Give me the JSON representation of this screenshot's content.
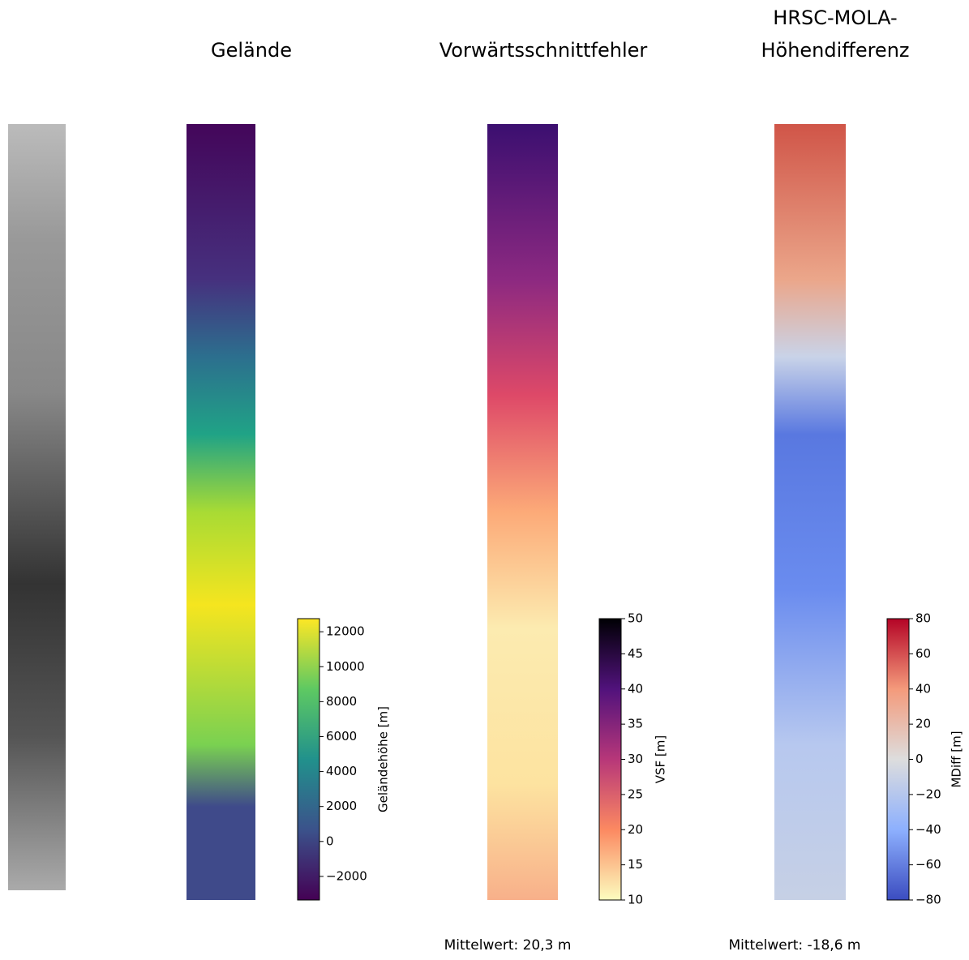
{
  "chart_data": [
    {
      "type": "heatmap",
      "title": [
        "Gelände"
      ],
      "colorbar_label": "Geländehöhe [m]",
      "clim": [
        -3350,
        12750
      ],
      "cticks": [
        {
          "value": -2000,
          "label": "−2000"
        },
        0,
        2000,
        4000,
        6000,
        8000,
        10000,
        12000
      ],
      "colormap": [
        "#440154",
        "#3b528b",
        "#21918c",
        "#5ec962",
        "#fde725"
      ]
    },
    {
      "type": "heatmap",
      "title": [
        "Vorwärtsschnittfehler"
      ],
      "colorbar_label": "VSF [m]",
      "clim": [
        10,
        50
      ],
      "cticks": [
        10,
        15,
        20,
        25,
        30,
        35,
        40,
        45,
        50
      ],
      "colormap": [
        "#fcfdbf",
        "#fc8961",
        "#b73779",
        "#51127c",
        "#000004"
      ],
      "annotation": "Mittelwert: 20,3 m"
    },
    {
      "type": "heatmap",
      "title": [
        "HRSC-MOLA-",
        "Höhendifferenz"
      ],
      "colorbar_label": "MDiff [m]",
      "clim": [
        -80,
        80
      ],
      "cticks": [
        {
          "value": -80,
          "label": "−80"
        },
        {
          "value": -60,
          "label": "−60"
        },
        {
          "value": -40,
          "label": "−40"
        },
        {
          "value": -20,
          "label": "−20"
        },
        0,
        20,
        40,
        60,
        80
      ],
      "colormap": [
        "#3b4cc0",
        "#8db0fe",
        "#dddddd",
        "#f49a7b",
        "#b40426"
      ],
      "annotation": "Mittelwert: -18,6 m"
    }
  ]
}
